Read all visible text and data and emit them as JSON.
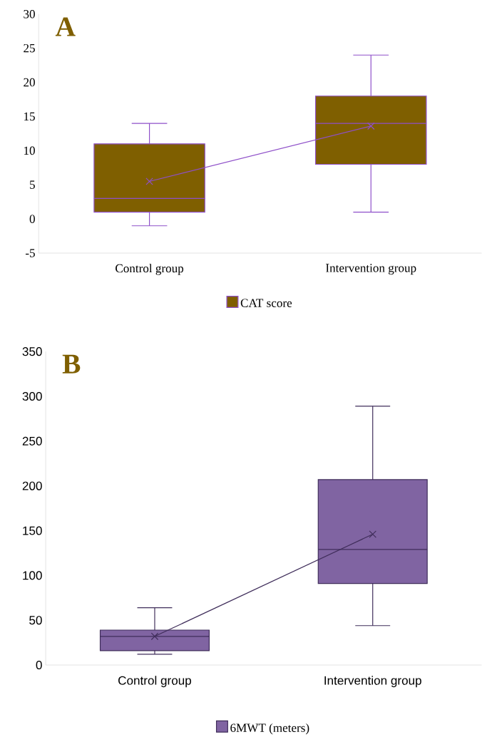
{
  "chart_data": [
    {
      "type": "box",
      "categories": [
        "Control group",
        "Intervention group"
      ],
      "series": [
        {
          "name": "CAT score",
          "color": "#7f5f00",
          "boxes": [
            {
              "low": -1,
              "q1": 1,
              "median": 3,
              "q3": 11,
              "high": 14
            },
            {
              "low": 1,
              "q1": 8,
              "median": 14,
              "q3": 18,
              "high": 24
            }
          ]
        },
        {
          "type": "line",
          "color": "#8e4fc9",
          "marker": "cross",
          "values": [
            5.5,
            13.6
          ]
        }
      ],
      "ylim": [
        -5,
        30
      ],
      "yticks": [
        -5,
        0,
        5,
        10,
        15,
        20,
        25,
        30
      ],
      "legend": "bottom",
      "grid": false,
      "annotations": [
        "A"
      ]
    },
    {
      "type": "box",
      "categories": [
        "Control group",
        "Intervention group"
      ],
      "series": [
        {
          "name": "6MWT (meters)",
          "color": "#8064a2",
          "boxes": [
            {
              "low": 12,
              "q1": 16,
              "median": 32,
              "q3": 39,
              "high": 64
            },
            {
              "low": 44,
              "q1": 91,
              "median": 129,
              "q3": 207,
              "high": 289
            }
          ]
        },
        {
          "type": "line",
          "color": "#3f2d5a",
          "marker": "cross",
          "values": [
            32,
            146
          ]
        }
      ],
      "ylim": [
        0,
        350
      ],
      "yticks": [
        0,
        50,
        100,
        150,
        200,
        250,
        300,
        350
      ],
      "legend": "bottom",
      "grid": false,
      "annotations": [
        "B"
      ]
    }
  ]
}
